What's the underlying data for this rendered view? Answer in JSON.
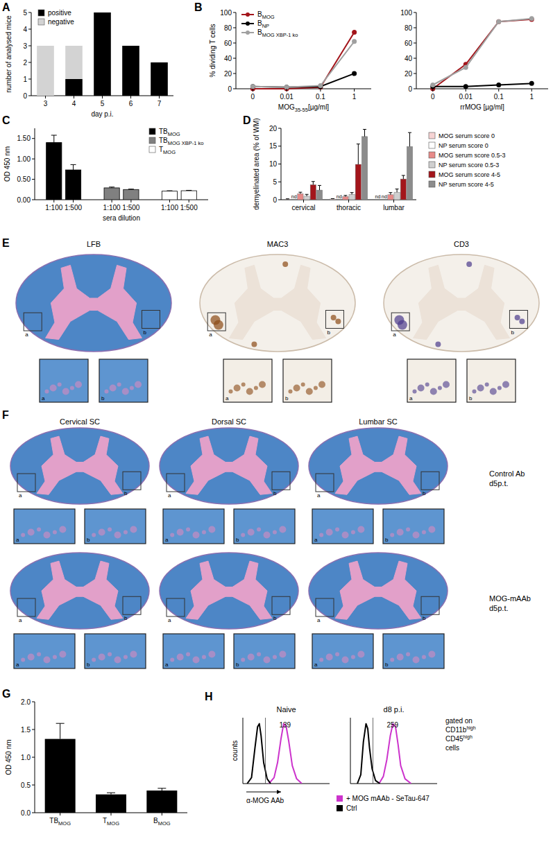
{
  "chart_data": [
    {
      "type": "bar",
      "title": "A",
      "stacked": true,
      "categories": [
        3,
        4,
        5,
        6,
        7
      ],
      "x_label": "day p.i.",
      "y_label": "number of analysed mice",
      "ylim": [
        0,
        5
      ],
      "yticks": [
        0,
        1,
        2,
        3,
        4,
        5
      ],
      "legend": "top-left",
      "series": [
        {
          "name": "positive",
          "color": "#000000",
          "values": [
            0,
            1,
            5,
            3,
            2
          ]
        },
        {
          "name": "negative",
          "color": "#d3d3d3",
          "values": [
            3,
            2,
            0,
            0,
            0
          ]
        }
      ]
    },
    {
      "type": "line",
      "title": "B",
      "categories": [
        0,
        0.01,
        0.1,
        1
      ],
      "x_label": "MOG35-55[µg/ml]",
      "y_label": "% dividing T cells",
      "ylim": [
        0,
        100
      ],
      "yticks": [
        0,
        20,
        40,
        60,
        80,
        100
      ],
      "legend": "top-left",
      "marker": "circle",
      "series": [
        {
          "name": "BMOG",
          "color": "#a3151b",
          "values": [
            0,
            0,
            2,
            74
          ]
        },
        {
          "name": "BNP",
          "color": "#000000",
          "values": [
            3,
            2,
            3,
            20
          ]
        },
        {
          "name": "BMOG XBP-1 ko",
          "color": "#a0a0a0",
          "values": [
            3,
            2,
            4,
            62
          ]
        }
      ]
    },
    {
      "type": "line",
      "categories": [
        0,
        0.01,
        0.1,
        1
      ],
      "x_label": "rrMOG [µg/ml]",
      "ylim": [
        0,
        100
      ],
      "yticks": [
        0,
        20,
        40,
        60,
        80,
        100
      ],
      "marker": "circle",
      "series": [
        {
          "color": "#a3151b",
          "values": [
            0,
            32,
            88,
            91
          ]
        },
        {
          "color": "#000000",
          "values": [
            3,
            3,
            5,
            7
          ]
        },
        {
          "color": "#a0a0a0",
          "values": [
            5,
            28,
            88,
            92
          ]
        }
      ]
    },
    {
      "type": "bar",
      "title": "C",
      "categories": [
        "1:100",
        "1:500"
      ],
      "x_label": "sera dilution",
      "y_label": "OD 450 nm",
      "ylim": [
        0,
        1.75
      ],
      "yticks": [
        {
          "value": 0,
          "label": "0.00"
        },
        {
          "value": 0.5,
          "label": "0.50"
        },
        {
          "value": 1,
          "label": "1.00"
        },
        {
          "value": 1.5,
          "label": "1.50"
        }
      ],
      "legend": "top-right",
      "series": [
        {
          "name": "TBMOG",
          "color": "#000000",
          "values": [
            1.4,
            0.73
          ],
          "errors": [
            0.18,
            0.13
          ]
        },
        {
          "name": "TBMOG XBP-1 ko",
          "color": "#808080",
          "values": [
            0.29,
            0.25
          ],
          "errors": [
            0.02,
            0.01
          ]
        },
        {
          "name": "TMOG",
          "color": "#ffffff",
          "values": [
            0.21,
            0.22
          ],
          "errors": [
            0.01,
            0.01
          ]
        }
      ]
    },
    {
      "type": "bar",
      "title": "D",
      "categories": [
        "cervical",
        "thoracic",
        "lumbar"
      ],
      "y_label": "demyelinated area (% of WM)",
      "ylim": [
        0,
        20
      ],
      "yticks": [
        0,
        5,
        10,
        15,
        20
      ],
      "legend": "right",
      "series": [
        {
          "name": "MOG serum score 0",
          "color": "#f6d3d3",
          "values": [
            0.15,
            0.2,
            null
          ],
          "errors": [
            0.1,
            0.1,
            null
          ],
          "value_labels": [
            null,
            null,
            "nd"
          ]
        },
        {
          "name": "NP serum score 0",
          "color": "#ffffff",
          "values": [
            null,
            null,
            null
          ],
          "errors": [
            null,
            null,
            null
          ],
          "value_labels": [
            "nd",
            "nd",
            "nd"
          ]
        },
        {
          "name": "MOG serum score 0.5-3",
          "color": "#e78a88",
          "values": [
            1.7,
            0.9,
            1.4
          ],
          "errors": [
            0.4,
            0.3,
            0.6
          ]
        },
        {
          "name": "NP serum score 0.5-3",
          "color": "#cfcfcf",
          "values": [
            1.0,
            1.5,
            2.1
          ],
          "errors": [
            0.5,
            0.5,
            0.9
          ]
        },
        {
          "name": "MOG serum score 4-5",
          "color": "#a3151b",
          "values": [
            4.2,
            9.9,
            5.8
          ],
          "errors": [
            0.9,
            5.7,
            1.0
          ]
        },
        {
          "name": "NP serum score 4-5",
          "color": "#8c8c8c",
          "values": [
            2.7,
            17.7,
            14.9
          ],
          "errors": [
            1.3,
            2.0,
            3.9
          ]
        }
      ]
    },
    {
      "type": "bar",
      "title": "G",
      "categories": [
        "TBMOG",
        "TMOG",
        "BMOG"
      ],
      "y_label": "OD 450 nm",
      "ylim": [
        0,
        2
      ],
      "yticks": [
        {
          "value": 0,
          "label": "0.0"
        },
        {
          "value": 0.5,
          "label": "0.5"
        },
        {
          "value": 1,
          "label": "1.0"
        },
        {
          "value": 1.5,
          "label": "1.5"
        },
        {
          "value": 2,
          "label": "2.0"
        }
      ],
      "series": [
        {
          "color": "#000000",
          "values": [
            1.33,
            0.33,
            0.4
          ],
          "errors": [
            0.28,
            0.03,
            0.04
          ]
        }
      ]
    },
    {
      "type": "line",
      "title": "H",
      "subtitle": "Naive",
      "x_label": "α-MOG AAb",
      "y_label": "counts",
      "tick_labels": false,
      "xlim": [
        0,
        100
      ],
      "ylim": [
        0,
        110
      ],
      "gate": 26,
      "annotation": 139,
      "series": [
        {
          "color": "#cc33cc",
          "x": [
            30,
            36,
            40,
            44,
            47,
            50,
            53,
            57,
            62,
            68
          ],
          "values": [
            0,
            10,
            35,
            75,
            100,
            95,
            70,
            30,
            8,
            0
          ]
        },
        {
          "color": "#000000",
          "x": [
            5,
            10,
            14,
            17,
            19,
            21,
            24,
            28,
            32
          ],
          "values": [
            0,
            10,
            60,
            95,
            100,
            80,
            35,
            8,
            0
          ]
        }
      ]
    },
    {
      "type": "line",
      "subtitle": "d8 p.i.",
      "tick_labels": false,
      "xlim": [
        0,
        100
      ],
      "ylim": [
        0,
        110
      ],
      "gate": 26,
      "annotation": 259,
      "legend": "bottom",
      "note": [
        "gated on",
        [
          "CD11b",
          "high"
        ],
        [
          "CD45",
          "high"
        ],
        "cells"
      ],
      "series": [
        {
          "name": "+ MOG mAAb - SeTau-647",
          "color": "#cc33cc",
          "x": [
            33,
            38,
            42,
            46,
            49,
            52,
            55,
            58,
            63,
            70
          ],
          "values": [
            0,
            12,
            40,
            80,
            100,
            95,
            65,
            30,
            8,
            0
          ]
        },
        {
          "name": "Ctrl",
          "color": "#000000",
          "x": [
            8,
            12,
            15,
            18,
            20,
            22,
            25,
            29,
            34
          ],
          "values": [
            0,
            15,
            70,
            100,
            92,
            60,
            25,
            5,
            0
          ]
        }
      ]
    }
  ],
  "image_panels": [
    {
      "title": "E",
      "stains": [
        "LFB",
        "MAC3",
        "CD3"
      ],
      "insets": [
        "a",
        "b"
      ]
    },
    {
      "title": "F",
      "columns": [
        "Cervical SC",
        "Dorsal SC",
        "Lumbar SC"
      ],
      "rows": [
        [
          "Control Ab",
          "d5p.t."
        ],
        [
          "MOG-mAAb",
          "d5p.t."
        ]
      ],
      "insets": [
        "a",
        "b"
      ]
    }
  ]
}
